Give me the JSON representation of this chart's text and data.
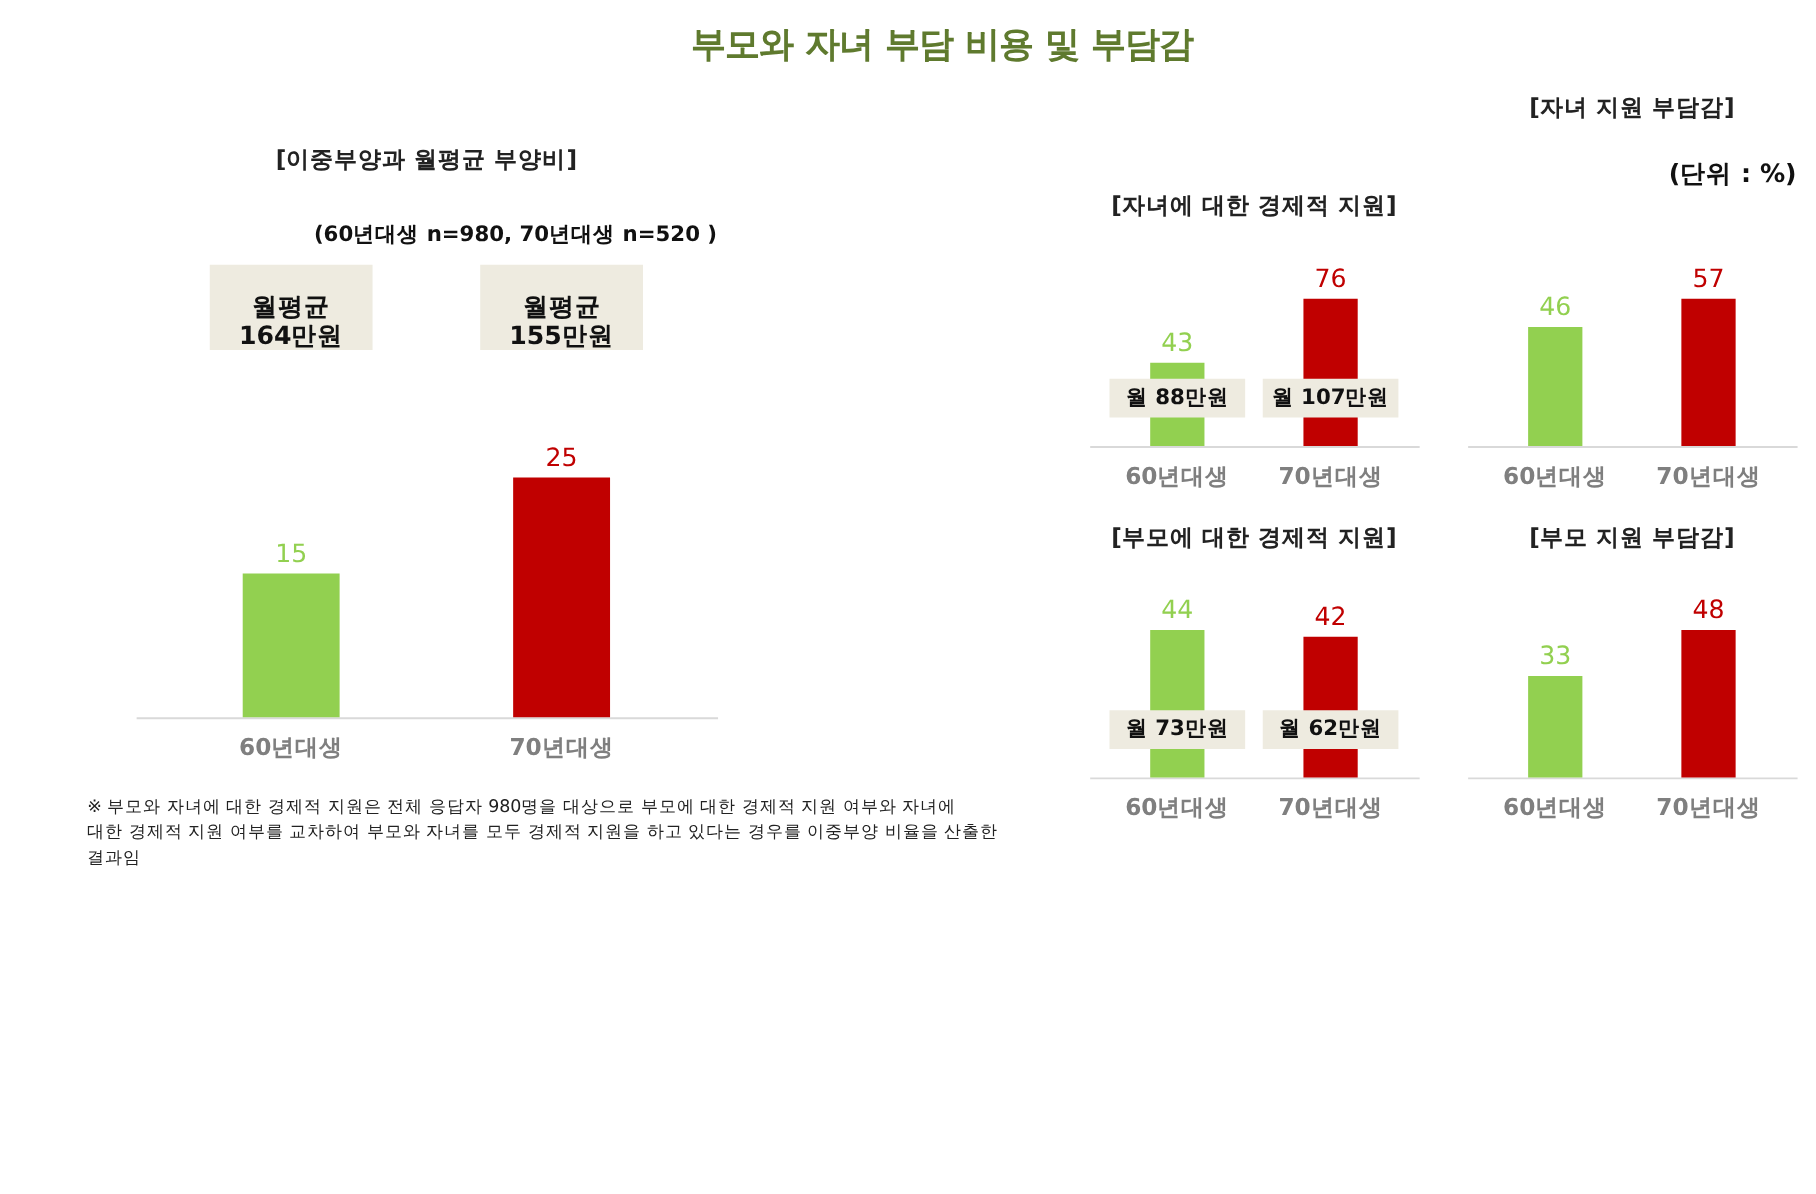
{
  "chart_data": [
    {
      "type": "bar",
      "title": "부모와 자녀 부담 비용 및 부담감",
      "subtitle": "[이중부양과 월평균 부양비]",
      "categories": [
        "60년대생",
        "70년대생"
      ],
      "values": [
        15,
        25
      ],
      "colors": [
        "#92d050",
        "#c00000"
      ],
      "data_labels": true,
      "annotations": [
        "(60년대생 n=980, 70년대생 n=520 )",
        "※ 부모와 자녀에 대한 경제적 지원은 전체 응답자 980명을 대상으로 부모에 대한 경제적 지원 여부와 자녀에 대한 경제적 지원 여부를 교차하여 부모와 자녀를 모두 경제적 지원을 하고 있다는 경우를 이중부양 비율을 산출한 결과임",
        "월평균 164만원",
        "월평균 155만원"
      ]
    },
    {
      "type": "bar",
      "title": "[자녀에 대한 경제적 지원]",
      "categories": [
        "60년대생",
        "70년대생"
      ],
      "values": [
        43,
        76
      ],
      "colors": [
        "#92d050",
        "#c00000"
      ],
      "data_labels": true,
      "annotations": [
        "월 88만원",
        "월 107만원"
      ]
    },
    {
      "type": "bar",
      "title": "[자녀 지원 부담감]",
      "categories": [
        "60년대생",
        "70년대생"
      ],
      "values": [
        46,
        57
      ],
      "colors": [
        "#92d050",
        "#c00000"
      ],
      "data_labels": true,
      "annotations": [
        "(단위 : %)"
      ]
    },
    {
      "type": "bar",
      "title": "[부모에 대한 경제적 지원]",
      "categories": [
        "60년대생",
        "70년대생"
      ],
      "values": [
        44,
        42
      ],
      "colors": [
        "#92d050",
        "#c00000"
      ],
      "data_labels": true,
      "annotations": [
        "월 73만원",
        "월 62만원"
      ]
    },
    {
      "type": "bar",
      "title": "[부모 지원 부담감]",
      "categories": [
        "60년대생",
        "70년대생"
      ],
      "values": [
        33,
        48
      ],
      "colors": [
        "#92d050",
        "#c00000"
      ],
      "data_labels": true
    }
  ]
}
